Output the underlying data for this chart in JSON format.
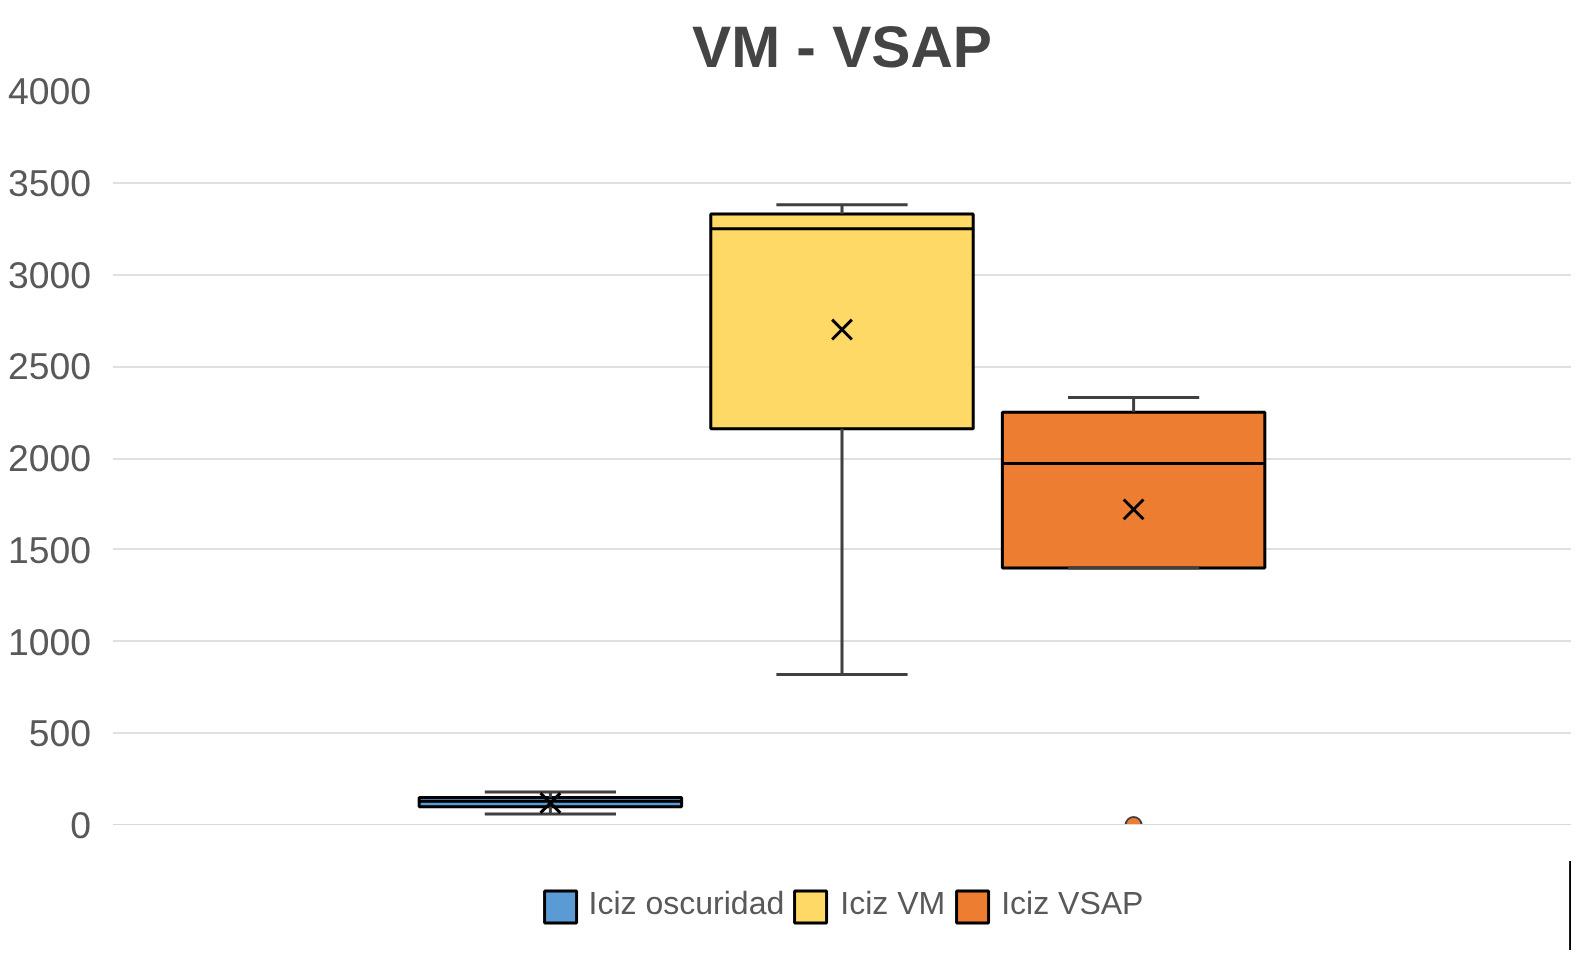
{
  "chart_data": {
    "type": "box",
    "title": "VM - VSAP",
    "categories": [
      null
    ],
    "series": [
      {
        "name": "Iciz oscuridad",
        "color": "#5b9bd5",
        "boxes": [
          {
            "low": 60,
            "q1": 100,
            "median": 130,
            "q3": 150,
            "high": 180,
            "mean": 120
          }
        ]
      },
      {
        "name": "Iciz VM",
        "color": "#ffd966",
        "boxes": [
          {
            "low": 820,
            "q1": 2160,
            "median": 3250,
            "q3": 3330,
            "high": 3380,
            "mean": 2700
          }
        ]
      },
      {
        "name": "Iciz VSAP",
        "color": "#ed7d31",
        "boxes": [
          {
            "low": 1400,
            "q1": 1400,
            "median": 1970,
            "q3": 2250,
            "high": 2330,
            "mean": 1720,
            "outliers": [
              0
            ]
          }
        ]
      }
    ],
    "ylim": [
      0,
      4000
    ],
    "yticks": [
      0,
      500,
      1000,
      1500,
      2000,
      2500,
      3000,
      3500,
      4000
    ],
    "grid": "y",
    "legend": "bottom"
  }
}
